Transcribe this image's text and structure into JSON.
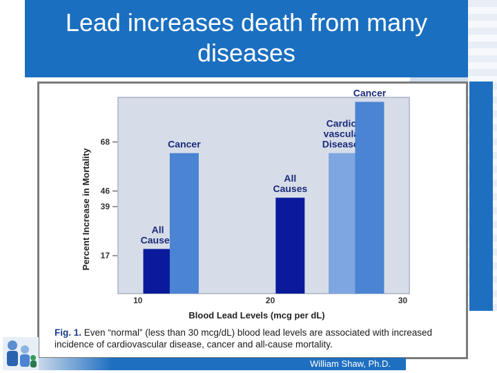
{
  "slide": {
    "title_line1": "Lead increases death from many",
    "title_line2": "diseases",
    "author": "William Shaw, Ph.D."
  },
  "caption": {
    "label": "Fig. 1.",
    "text": " Even “normal” (less than 30 mcg/dL) blood lead levels are associated with increased incidence of cardiovascular disease, cancer and all-cause mortality."
  },
  "colors": {
    "title_bg": "#1a6fc0",
    "plot_bg": "#d7dde8",
    "bar_dark": "#0a1a9a",
    "bar_mid": "#4a84d2",
    "bar_light": "#7ea6e0",
    "label_color": "#1a2a7a"
  },
  "chart_data": {
    "type": "bar",
    "xlabel": "Blood Lead Levels (mcg per dL)",
    "ylabel": "Percent Increase in Mortality",
    "x_ticks": [
      10,
      20,
      30
    ],
    "y_ticks": [
      17,
      39,
      46,
      68
    ],
    "xlim": [
      8.5,
      30.5
    ],
    "ylim": [
      0,
      88
    ],
    "bars": [
      {
        "label_lines": [
          "All",
          "Causes"
        ],
        "x": 11.5,
        "value": 20,
        "color": "#0a1a9a"
      },
      {
        "label_lines": [
          "Cancer"
        ],
        "x": 13.5,
        "value": 63,
        "color": "#4a84d2"
      },
      {
        "label_lines": [
          "All",
          "Causes"
        ],
        "x": 21.5,
        "value": 43,
        "color": "#0a1a9a"
      },
      {
        "label_lines": [
          "Cardio-",
          "vascular",
          "Diseases"
        ],
        "x": 25.5,
        "value": 63,
        "color": "#7ea6e0"
      },
      {
        "label_lines": [
          "Cancer"
        ],
        "x": 27.5,
        "value": 86,
        "color": "#4a84d2"
      }
    ]
  }
}
